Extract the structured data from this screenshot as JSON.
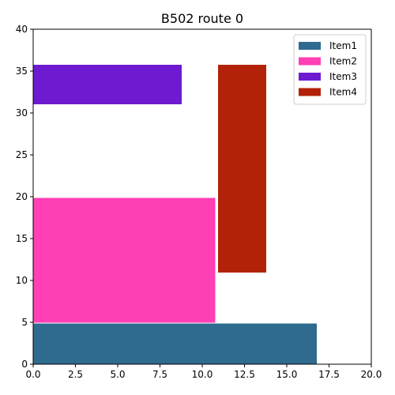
{
  "chart_data": {
    "type": "bar",
    "title": "B502 route 0",
    "xlabel": "",
    "ylabel": "",
    "xlim": [
      0,
      20
    ],
    "ylim": [
      0,
      40
    ],
    "xticks": [
      "0.0",
      "2.5",
      "5.0",
      "7.5",
      "10.0",
      "12.5",
      "15.0",
      "17.5",
      "20.0"
    ],
    "yticks": [
      "0",
      "5",
      "10",
      "15",
      "20",
      "25",
      "30",
      "35",
      "40"
    ],
    "grid": false,
    "legend_position": "top-right",
    "series": [
      {
        "name": "Item1",
        "color": "#2e6b8e",
        "x0": 0.0,
        "x1": 16.8,
        "y0": 0.0,
        "y1": 4.9
      },
      {
        "name": "Item2",
        "color": "#ff3fb4",
        "x0": 0.0,
        "x1": 10.8,
        "y0": 4.9,
        "y1": 19.9
      },
      {
        "name": "Item3",
        "color": "#6d1ad1",
        "x0": 0.0,
        "x1": 8.8,
        "y0": 31.0,
        "y1": 35.8
      },
      {
        "name": "Item4",
        "color": "#b22208",
        "x0": 10.9,
        "x1": 13.8,
        "y0": 10.9,
        "y1": 35.8
      }
    ]
  }
}
